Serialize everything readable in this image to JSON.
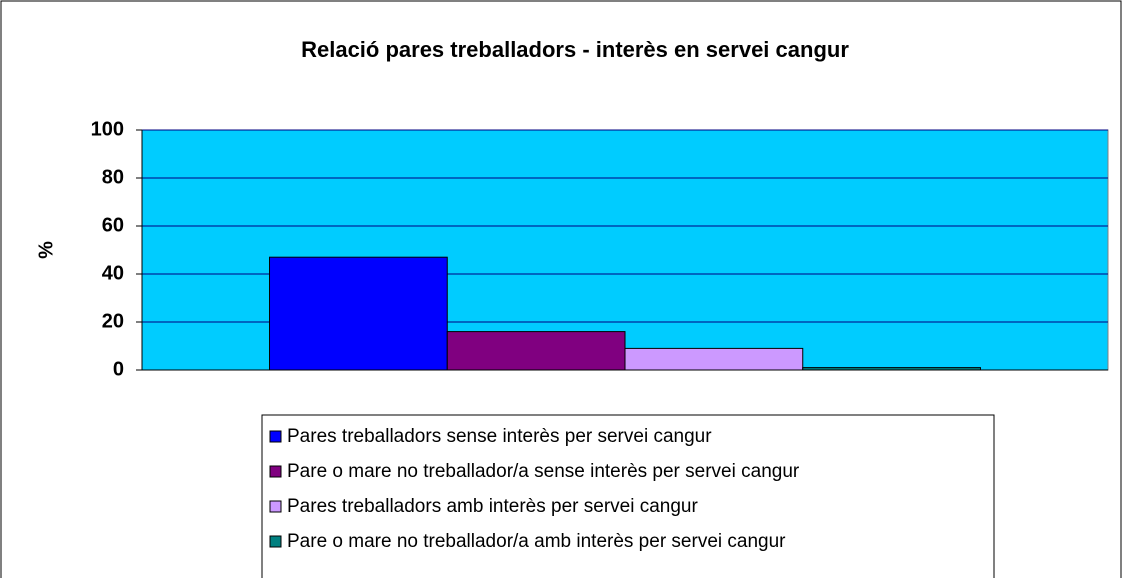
{
  "chart_data": {
    "type": "bar",
    "title": "Relació pares treballadors - interès en servei cangur",
    "ylabel": "%",
    "categories": [
      null
    ],
    "series": [
      {
        "name": "Pares treballadors sense interès per servei cangur",
        "color": "#0000ff",
        "values": [
          47
        ]
      },
      {
        "name": "Pare o mare no treballador/a sense interès per servei cangur",
        "color": "#800080",
        "values": [
          16
        ]
      },
      {
        "name": "Pares treballadors amb interès per servei cangur",
        "color": "#cc99ff",
        "values": [
          9
        ]
      },
      {
        "name": "Pare o mare no treballador/a amb interès per servei cangur",
        "color": "#008080",
        "values": [
          1
        ]
      }
    ],
    "ylim": [
      0,
      100
    ],
    "yticks": [
      0,
      20,
      40,
      60,
      80,
      100
    ],
    "grid": true,
    "legend": "bottom",
    "plot_background": "#00ccff"
  }
}
